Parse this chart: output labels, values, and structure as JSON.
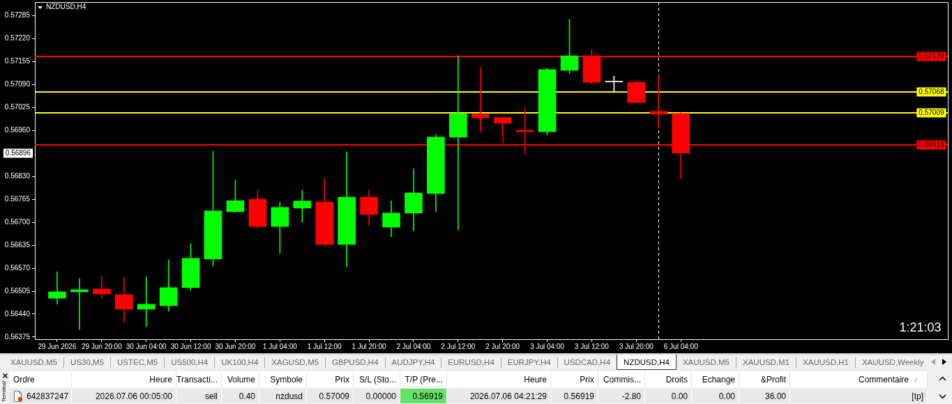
{
  "chart_data": [
    {
      "type": "candlestick",
      "title": "NZDUSD,H4",
      "categories": [
        "29 Jun 2026",
        null,
        "29 Jun 20:00",
        null,
        "30 Jun 04:00",
        null,
        "30 Jun 12:00",
        null,
        "30 Jun 20:00",
        null,
        "1 Jul 04:00",
        null,
        "1 Jul 12:00",
        null,
        "1 Jul 20:00",
        null,
        "2 Jul 04:00",
        null,
        "2 Jul 12:00",
        null,
        "2 Jul 20:00",
        null,
        "3 Jul 04:00",
        null,
        "3 Jul 12:00",
        null,
        "3 Jul 20:00",
        null,
        "6 Jul 04:00"
      ],
      "ohlc": [
        [
          0.56485,
          0.5656,
          0.56468,
          0.56503
        ],
        [
          0.56503,
          0.56541,
          0.56397,
          0.56509
        ],
        [
          0.56511,
          0.56547,
          0.56485,
          0.56497
        ],
        [
          0.56495,
          0.56545,
          0.56416,
          0.56454
        ],
        [
          0.56454,
          0.56545,
          0.56405,
          0.56468
        ],
        [
          0.56464,
          0.56594,
          0.56448,
          0.56515
        ],
        [
          0.56515,
          0.56639,
          0.56507,
          0.56598
        ],
        [
          0.56596,
          0.56901,
          0.56576,
          0.56732
        ],
        [
          0.5673,
          0.5682,
          0.56728,
          0.56761
        ],
        [
          0.56765,
          0.56791,
          0.56683,
          0.56688
        ],
        [
          0.56688,
          0.56757,
          0.56612,
          0.56742
        ],
        [
          0.5674,
          0.56791,
          0.567,
          0.5676
        ],
        [
          0.56757,
          0.56824,
          0.56633,
          0.56637
        ],
        [
          0.56637,
          0.56899,
          0.56574,
          0.56771
        ],
        [
          0.56771,
          0.56791,
          0.56692,
          0.56722
        ],
        [
          0.56686,
          0.56761,
          0.56659,
          0.56726
        ],
        [
          0.56726,
          0.56852,
          0.56675,
          0.56783
        ],
        [
          0.56781,
          0.56949,
          0.5673,
          0.56941
        ],
        [
          0.56941,
          0.57171,
          0.56679,
          0.57008
        ],
        [
          0.57006,
          0.57138,
          0.56955,
          0.56996
        ],
        [
          0.56996,
          0.56998,
          0.56927,
          0.5698
        ],
        [
          0.5696,
          0.57022,
          0.56893,
          0.56956
        ],
        [
          0.56956,
          0.57136,
          0.56947,
          0.57132
        ],
        [
          0.5713,
          0.57274,
          0.5712,
          0.57171
        ],
        [
          0.57171,
          0.57189,
          0.57091,
          0.57096
        ],
        [
          0.57097,
          0.57114,
          0.57069,
          0.57097
        ],
        [
          0.57096,
          0.571,
          0.57039,
          0.57039
        ],
        [
          0.57014,
          0.57116,
          0.56966,
          0.57006
        ],
        [
          0.57008,
          0.5701,
          0.56824,
          0.56896
        ]
      ],
      "colors": [
        "#00ff00",
        "#00ff00",
        "#ff0000",
        "#ff0000",
        "#00ff00",
        "#00ff00",
        "#00ff00",
        "#00ff00",
        "#00ff00",
        "#ff0000",
        "#00ff00",
        "#00ff00",
        "#ff0000",
        "#00ff00",
        "#ff0000",
        "#00ff00",
        "#00ff00",
        "#00ff00",
        "#00ff00",
        "#ff0000",
        "#ff0000",
        "#ff0000",
        "#00ff00",
        "#00ff00",
        "#ff0000",
        "#ffffff",
        "#ff0000",
        "#ff0000",
        "#ff0000"
      ],
      "ylim": [
        0.56369,
        0.57323
      ],
      "yticks": [
        {
          "value": 0.57285,
          "label": "0.57285"
        },
        {
          "value": 0.5722,
          "label": "0.57220"
        },
        {
          "value": 0.57155,
          "label": "0.57155"
        },
        {
          "value": 0.5709,
          "label": "0.57090"
        },
        {
          "value": 0.57025,
          "label": "0.57025"
        },
        {
          "value": 0.5696,
          "label": "0.56960"
        },
        {
          "value": 0.5683,
          "label": "0.56830"
        },
        {
          "value": 0.56765,
          "label": "0.56765"
        },
        {
          "value": 0.567,
          "label": "0.56700"
        },
        {
          "value": 0.56635,
          "label": "0.56635"
        },
        {
          "value": 0.5657,
          "label": "0.56570"
        },
        {
          "value": 0.56505,
          "label": "0.56505"
        },
        {
          "value": 0.5644,
          "label": "0.56440"
        },
        {
          "value": 0.56375,
          "label": "0.56375"
        }
      ],
      "ref_lines": [
        {
          "axis": "y",
          "value": 0.5717,
          "label": "0.57170",
          "color": "#ff0000"
        },
        {
          "axis": "y",
          "value": 0.57068,
          "label": "0.57068",
          "color": "#ffff00"
        },
        {
          "axis": "y",
          "value": 0.57009,
          "label": "0.57009",
          "color": "#ffff00"
        },
        {
          "axis": "y",
          "value": 0.56919,
          "label": "0.56919",
          "color": "#ff0000"
        }
      ],
      "annotations": [
        "0.56896",
        "1:21:03"
      ]
    },
    {
      "type": "other",
      "categories": [
        "XAUUSD,M5",
        "US30,M5",
        "USTEC,M5",
        "US500,H4",
        "UK100,H4",
        "XAGUSD,M5",
        "GBPUSD,H4",
        "AUDJPY,H4",
        "EURUSD,H4",
        "EURJPY,H4",
        "USDCAD,H4",
        "NZDUSD,H4",
        "XAUUSD,M5",
        "XAUUSD,M1",
        "XAUUSD,H1",
        "XAUUSD,Weekly"
      ]
    },
    {
      "type": "other",
      "title": "Terminal",
      "categories": [
        "Ordre",
        "Heure",
        "Transacti...",
        "Volume",
        "Symbole",
        "Prix",
        "S/L (Sto...",
        "T/P (Pre...",
        "Heure",
        "Prix",
        "Commis...",
        "Droits",
        "Echange",
        "&Profit",
        "Commentaire"
      ],
      "annotations": [
        "642837247",
        "2026.07.06 00:05:00",
        "sell",
        "0.40",
        "nzdusd",
        "0.57009",
        "0.00000",
        "0.56919",
        "2026.07.06 04:21:29",
        "0.56919",
        "-2.80",
        "0.00",
        "0.00",
        "36.00",
        "[tp]"
      ],
      "colors": [
        null,
        null,
        null,
        null,
        null,
        null,
        null,
        "#66e066",
        null,
        null,
        null,
        null,
        null,
        null,
        null
      ]
    }
  ]
}
